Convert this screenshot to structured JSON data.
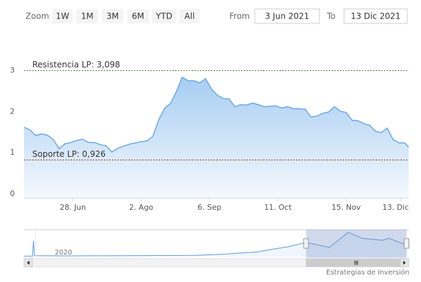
{
  "range_selector": {
    "zoom_label": "Zoom",
    "buttons": [
      "1W",
      "1M",
      "3M",
      "6M",
      "YTD",
      "All"
    ],
    "from_label": "From",
    "from": "3 Jun 2021",
    "to_label": "To",
    "to": "13 Dic 2021"
  },
  "chart_data": {
    "type": "area",
    "color": "#6aa7e4",
    "x": [
      "2021-06-03",
      "2021-06-06",
      "2021-06-09",
      "2021-06-12",
      "2021-06-15",
      "2021-06-18",
      "2021-06-21",
      "2021-06-24",
      "2021-06-27",
      "2021-06-30",
      "2021-07-03",
      "2021-07-06",
      "2021-07-09",
      "2021-07-12",
      "2021-07-15",
      "2021-07-18",
      "2021-07-21",
      "2021-07-24",
      "2021-07-27",
      "2021-07-30",
      "2021-08-02",
      "2021-08-05",
      "2021-08-08",
      "2021-08-11",
      "2021-08-14",
      "2021-08-17",
      "2021-08-20",
      "2021-08-23",
      "2021-08-26",
      "2021-08-29",
      "2021-09-01",
      "2021-09-04",
      "2021-09-07",
      "2021-09-10",
      "2021-09-13",
      "2021-09-16",
      "2021-09-19",
      "2021-09-22",
      "2021-09-25",
      "2021-09-28",
      "2021-10-01",
      "2021-10-04",
      "2021-10-07",
      "2021-10-10",
      "2021-10-13",
      "2021-10-16",
      "2021-10-19",
      "2021-10-22",
      "2021-10-25",
      "2021-10-28",
      "2021-10-31",
      "2021-11-03",
      "2021-11-06",
      "2021-11-09",
      "2021-11-12",
      "2021-11-15",
      "2021-11-18",
      "2021-11-21",
      "2021-11-24",
      "2021-11-27",
      "2021-11-30",
      "2021-12-03",
      "2021-12-06",
      "2021-12-09",
      "2021-12-12",
      "2021-12-15",
      "2021-12-17"
    ],
    "values": [
      1.72,
      1.66,
      1.52,
      1.56,
      1.53,
      1.42,
      1.2,
      1.32,
      1.35,
      1.4,
      1.43,
      1.35,
      1.35,
      1.3,
      1.27,
      1.12,
      1.21,
      1.26,
      1.31,
      1.34,
      1.37,
      1.39,
      1.5,
      1.9,
      2.18,
      2.3,
      2.58,
      2.94,
      2.85,
      2.85,
      2.8,
      2.9,
      2.65,
      2.5,
      2.42,
      2.41,
      2.22,
      2.27,
      2.26,
      2.31,
      2.27,
      2.22,
      2.23,
      2.24,
      2.19,
      2.22,
      2.17,
      2.17,
      2.16,
      1.97,
      1.99,
      2.06,
      2.09,
      2.22,
      2.11,
      2.08,
      1.89,
      1.88,
      1.81,
      1.77,
      1.62,
      1.59,
      1.7,
      1.42,
      1.34,
      1.34,
      1.24
    ],
    "xlim": [
      "2021-06-03",
      "2021-12-17"
    ],
    "xticks": [
      {
        "value": "2021-06-28",
        "label": "28. Jun"
      },
      {
        "value": "2021-08-02",
        "label": "2. Ago"
      },
      {
        "value": "2021-09-06",
        "label": "6. Sep"
      },
      {
        "value": "2021-10-11",
        "label": "11. Oct"
      },
      {
        "value": "2021-11-15",
        "label": "15. Nov"
      },
      {
        "value": "2021-12-13",
        "label": "13. Dic"
      }
    ],
    "ylim": [
      0,
      3.9
    ],
    "yticks": [
      0,
      1,
      2,
      3
    ],
    "plot_lines": [
      {
        "label": "Resistencia LP: 3,098",
        "value": 3.098,
        "color": "#2f7d1f"
      },
      {
        "label": "Soporte LP: 0,926",
        "value": 0.926,
        "color": "#9b1c1c"
      }
    ]
  },
  "navigator": {
    "color": "#5b9bd9",
    "x": [
      "2019-12-10",
      "2019-12-26",
      "2019-12-28",
      "2019-12-30",
      "2020-03-01",
      "2020-07-01",
      "2020-11-01",
      "2021-01-01",
      "2021-02-01",
      "2021-03-01",
      "2021-04-01",
      "2021-05-01",
      "2021-06-03",
      "2021-07-18",
      "2021-08-23",
      "2021-09-19",
      "2021-10-28",
      "2021-11-09",
      "2021-12-15"
    ],
    "values": [
      0.05,
      0.05,
      1.9,
      0.1,
      0.08,
      0.1,
      0.15,
      0.3,
      0.45,
      0.55,
      0.9,
      1.2,
      1.72,
      1.12,
      2.94,
      2.22,
      1.97,
      2.22,
      1.34
    ],
    "xlim": [
      "2019-12-10",
      "2021-12-17"
    ],
    "ylim": [
      0,
      3
    ],
    "xticks": [
      {
        "value": "2020-01-01",
        "label": "2020"
      }
    ],
    "range": [
      "2021-06-03",
      "2021-12-13"
    ]
  },
  "credit": "Estrategias de Inversión"
}
